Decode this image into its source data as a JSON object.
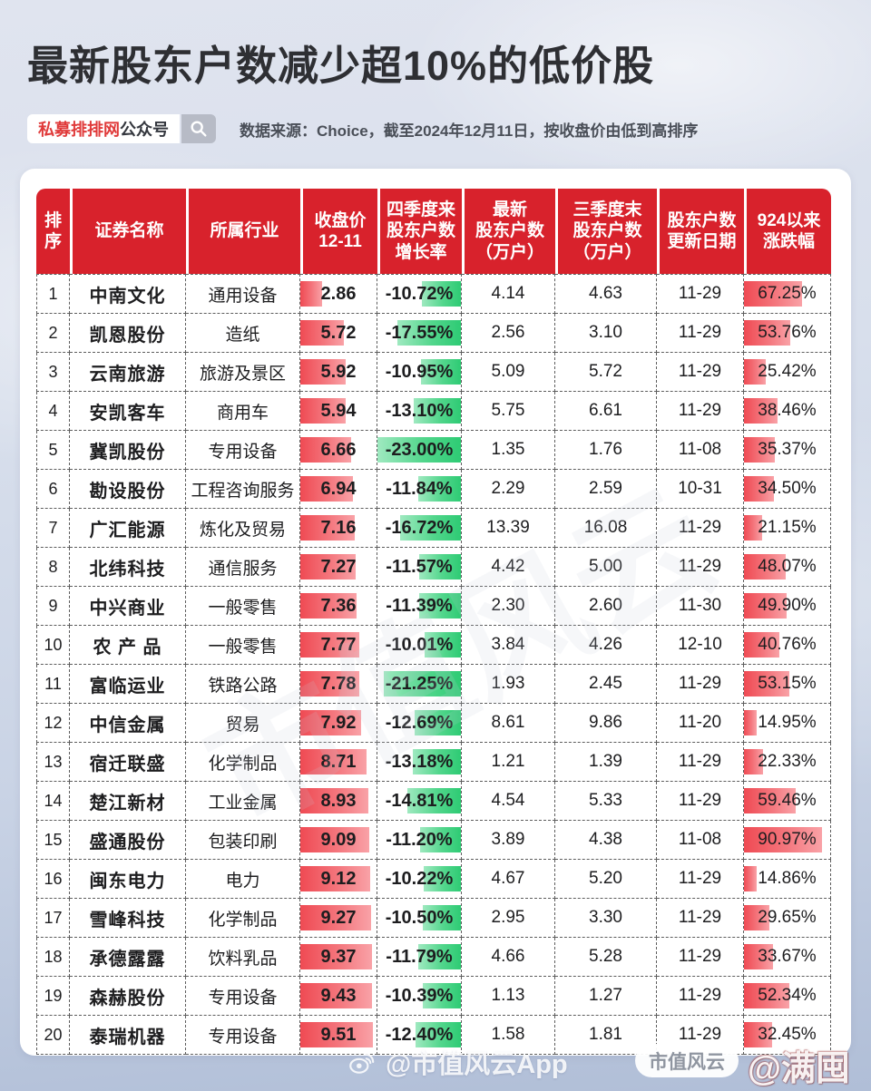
{
  "title": "最新股东户数减少超10%的低价股",
  "badge": {
    "brand": "私募排排网",
    "suffix": "公众号"
  },
  "source_note": "数据来源：Choice，截至2024年12月11日，按收盘价由低到高排序",
  "watermarks": {
    "diagonal": "市值风云",
    "center": "@市值风云App",
    "pill": "市值风云",
    "handle": "@满囤旺"
  },
  "colors": {
    "header_red": "#d8222c",
    "price_bar_red": "#ef4a53",
    "decline_bar_green": "#2ecb74",
    "change_bar_red": "#f4777e",
    "brand_red": "#e03a3a"
  },
  "chart_data": {
    "type": "table",
    "title": "最新股东户数减少超10%的低价股",
    "bar_scales": {
      "price_max": 10,
      "decline_max_pct": 23,
      "change_max_pct": 100
    },
    "columns": [
      "排序",
      "证券名称",
      "所属行业",
      "收盘价\n12-11",
      "四季度来\n股东户数\n增长率",
      "最新\n股东户数\n（万户）",
      "三季度末\n股东户数\n（万户）",
      "股东户数\n更新日期",
      "924以来\n涨跌幅"
    ],
    "rows": [
      {
        "rank": "1",
        "name": "中南文化",
        "industry": "通用设备",
        "price": "2.86",
        "growth": "-10.72%",
        "latest": "4.14",
        "q3": "4.63",
        "date": "11-29",
        "change": "67.25%"
      },
      {
        "rank": "2",
        "name": "凯恩股份",
        "industry": "造纸",
        "price": "5.72",
        "growth": "-17.55%",
        "latest": "2.56",
        "q3": "3.10",
        "date": "11-29",
        "change": "53.76%"
      },
      {
        "rank": "3",
        "name": "云南旅游",
        "industry": "旅游及景区",
        "price": "5.92",
        "growth": "-10.95%",
        "latest": "5.09",
        "q3": "5.72",
        "date": "11-29",
        "change": "25.42%"
      },
      {
        "rank": "4",
        "name": "安凯客车",
        "industry": "商用车",
        "price": "5.94",
        "growth": "-13.10%",
        "latest": "5.75",
        "q3": "6.61",
        "date": "11-29",
        "change": "38.46%"
      },
      {
        "rank": "5",
        "name": "冀凯股份",
        "industry": "专用设备",
        "price": "6.66",
        "growth": "-23.00%",
        "latest": "1.35",
        "q3": "1.76",
        "date": "11-08",
        "change": "35.37%"
      },
      {
        "rank": "6",
        "name": "勘设股份",
        "industry": "工程咨询服务",
        "price": "6.94",
        "growth": "-11.84%",
        "latest": "2.29",
        "q3": "2.59",
        "date": "10-31",
        "change": "34.50%"
      },
      {
        "rank": "7",
        "name": "广汇能源",
        "industry": "炼化及贸易",
        "price": "7.16",
        "growth": "-16.72%",
        "latest": "13.39",
        "q3": "16.08",
        "date": "11-29",
        "change": "21.15%"
      },
      {
        "rank": "8",
        "name": "北纬科技",
        "industry": "通信服务",
        "price": "7.27",
        "growth": "-11.57%",
        "latest": "4.42",
        "q3": "5.00",
        "date": "11-29",
        "change": "48.07%"
      },
      {
        "rank": "9",
        "name": "中兴商业",
        "industry": "一般零售",
        "price": "7.36",
        "growth": "-11.39%",
        "latest": "2.30",
        "q3": "2.60",
        "date": "11-30",
        "change": "49.90%"
      },
      {
        "rank": "10",
        "name": "农 产 品",
        "industry": "一般零售",
        "price": "7.77",
        "growth": "-10.01%",
        "latest": "3.84",
        "q3": "4.26",
        "date": "12-10",
        "change": "40.76%"
      },
      {
        "rank": "11",
        "name": "富临运业",
        "industry": "铁路公路",
        "price": "7.78",
        "growth": "-21.25%",
        "latest": "1.93",
        "q3": "2.45",
        "date": "11-29",
        "change": "53.15%"
      },
      {
        "rank": "12",
        "name": "中信金属",
        "industry": "贸易",
        "price": "7.92",
        "growth": "-12.69%",
        "latest": "8.61",
        "q3": "9.86",
        "date": "11-20",
        "change": "14.95%"
      },
      {
        "rank": "13",
        "name": "宿迁联盛",
        "industry": "化学制品",
        "price": "8.71",
        "growth": "-13.18%",
        "latest": "1.21",
        "q3": "1.39",
        "date": "11-29",
        "change": "22.33%"
      },
      {
        "rank": "14",
        "name": "楚江新材",
        "industry": "工业金属",
        "price": "8.93",
        "growth": "-14.81%",
        "latest": "4.54",
        "q3": "5.33",
        "date": "11-29",
        "change": "59.46%"
      },
      {
        "rank": "15",
        "name": "盛通股份",
        "industry": "包装印刷",
        "price": "9.09",
        "growth": "-11.20%",
        "latest": "3.89",
        "q3": "4.38",
        "date": "11-08",
        "change": "90.97%"
      },
      {
        "rank": "16",
        "name": "闽东电力",
        "industry": "电力",
        "price": "9.12",
        "growth": "-10.22%",
        "latest": "4.67",
        "q3": "5.20",
        "date": "11-29",
        "change": "14.86%"
      },
      {
        "rank": "17",
        "name": "雪峰科技",
        "industry": "化学制品",
        "price": "9.27",
        "growth": "-10.50%",
        "latest": "2.95",
        "q3": "3.30",
        "date": "11-29",
        "change": "29.65%"
      },
      {
        "rank": "18",
        "name": "承德露露",
        "industry": "饮料乳品",
        "price": "9.37",
        "growth": "-11.79%",
        "latest": "4.66",
        "q3": "5.28",
        "date": "11-29",
        "change": "33.67%"
      },
      {
        "rank": "19",
        "name": "森赫股份",
        "industry": "专用设备",
        "price": "9.43",
        "growth": "-10.39%",
        "latest": "1.13",
        "q3": "1.27",
        "date": "11-29",
        "change": "52.34%"
      },
      {
        "rank": "20",
        "name": "泰瑞机器",
        "industry": "专用设备",
        "price": "9.51",
        "growth": "-12.40%",
        "latest": "1.58",
        "q3": "1.81",
        "date": "11-29",
        "change": "32.45%"
      }
    ]
  }
}
